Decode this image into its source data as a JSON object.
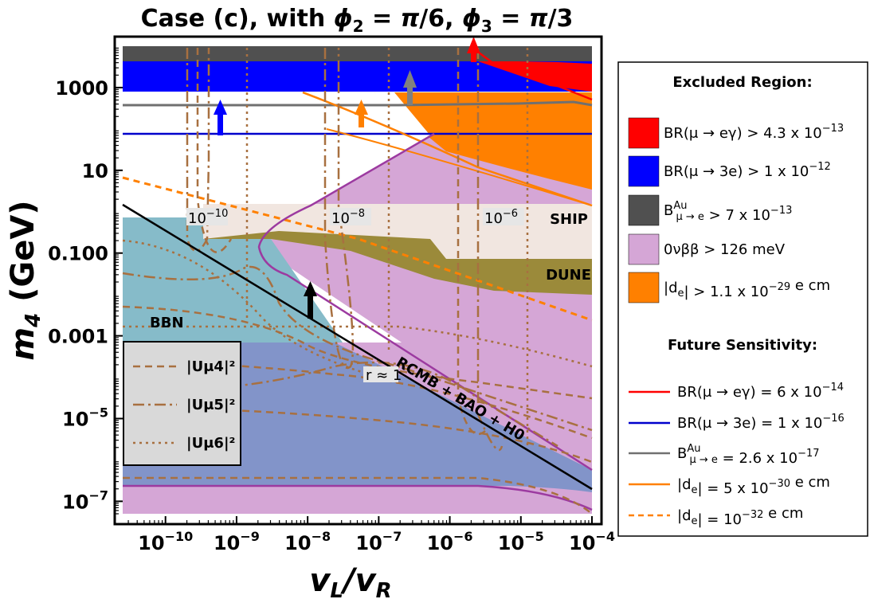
{
  "chart_data": {
    "type": "area",
    "title": "Case (c), with ϕ₂ = π/6, ϕ₃ = π/3",
    "xlabel": "vL/vR",
    "ylabel": "m4 (GeV)",
    "x_scale": "log",
    "y_scale": "log",
    "xlim": [
      2.5e-11,
      0.0001
    ],
    "ylim": [
      5e-08,
      10000.0
    ],
    "x_ticks": [
      {
        "value": 1e-10,
        "base": "10",
        "exp": "−10"
      },
      {
        "value": 1e-09,
        "base": "10",
        "exp": "−9"
      },
      {
        "value": 1e-08,
        "base": "10",
        "exp": "−8"
      },
      {
        "value": 1e-07,
        "base": "10",
        "exp": "−7"
      },
      {
        "value": 1e-06,
        "base": "10",
        "exp": "−6"
      },
      {
        "value": 1e-05,
        "base": "10",
        "exp": "−5"
      },
      {
        "value": 0.0001,
        "base": "10",
        "exp": "−4"
      }
    ],
    "y_ticks": [
      {
        "value": 1000,
        "base": "1000",
        "exp": ""
      },
      {
        "value": 10,
        "base": "10",
        "exp": ""
      },
      {
        "value": 0.1,
        "base": "0.100",
        "exp": ""
      },
      {
        "value": 0.001,
        "base": "0.001",
        "exp": ""
      },
      {
        "value": 1e-05,
        "base": "10",
        "exp": "−5"
      },
      {
        "value": 1e-07,
        "base": "10",
        "exp": "−7"
      }
    ],
    "excluded_regions": [
      {
        "name": "BR(μ → eγ) > 4.3 x 10⁻¹³",
        "color": "#ff0000"
      },
      {
        "name": "BR(μ → 3e) > 1 x 10⁻¹²",
        "color": "#0000ff"
      },
      {
        "name": "B^Au μ→e > 7 x 10⁻¹³",
        "color": "#505050"
      },
      {
        "name": "0νββ > 126 meV",
        "color": "#d5a6d6"
      },
      {
        "name": "|de| > 1.1 x 10⁻²⁹ e cm",
        "color": "#ff8000"
      }
    ],
    "future_sensitivity": [
      {
        "name": "BR(μ → eγ) = 6 x 10⁻¹⁴",
        "color": "#ff0000",
        "dash": "solid",
        "y_at_xmin": 4000,
        "y_at_xmax": 550
      },
      {
        "name": "BR(μ → 3e) = 1 x 10⁻¹⁶",
        "color": "#0000cc",
        "dash": "solid",
        "y_const": 90
      },
      {
        "name": "B^Au μ→e = 2.6 x 10⁻¹⁷",
        "color": "#707070",
        "dash": "solid",
        "y_const": 420
      },
      {
        "name": "|de| = 5 x 10⁻³⁰ e cm",
        "color": "#ff8000",
        "dash": "solid"
      },
      {
        "name": "|de| = 10⁻³² e cm",
        "color": "#ff8000",
        "dash": "dashed",
        "y_at_xmin": 8,
        "y_at_xmax": 0.004
      }
    ],
    "mixing_legend": [
      {
        "name": "|Uμ4|²",
        "color": "#a87040",
        "dash": "dashed"
      },
      {
        "name": "|Uμ5|²",
        "color": "#a87040",
        "dash": "dashdot"
      },
      {
        "name": "|Uμ6|²",
        "color": "#a87040",
        "dash": "dotted"
      }
    ],
    "annotations": {
      "ship": "SHIP",
      "dune": "DUNE",
      "bbn": "BBN",
      "r_label": "r ≈ 1",
      "cmb_line": "RCMB + BAO + H0",
      "contour_labels": [
        {
          "base": "10",
          "exp": "−10",
          "x": 1e-10
        },
        {
          "base": "10",
          "exp": "−8",
          "x": 1e-08
        },
        {
          "base": "10",
          "exp": "−6",
          "x": 1e-06
        }
      ]
    },
    "legend_placement": "right",
    "grid": false
  },
  "legend": {
    "excluded_header": "Excluded Region:",
    "future_header": "Future Sensitivity:",
    "excluded_items": [
      {
        "pre": "BR(μ → eγ) > 4.3 x 10",
        "sup": "−13",
        "post": ""
      },
      {
        "pre": "BR(μ → 3e) > 1 x 10",
        "sup": "−12",
        "post": ""
      },
      {
        "pre": "B",
        "sup": "Au",
        "sub": "μ → e",
        "post": " > 7 x 10",
        "sup2": "−13"
      },
      {
        "pre": "0νββ > 126 meV",
        "sup": "",
        "post": ""
      },
      {
        "pre": "|d",
        "sub": "e",
        "post": "| > 1.1 x 10",
        "sup2": "−29",
        "post2": " e cm"
      }
    ],
    "future_items": [
      {
        "pre": "BR(μ → eγ) = 6 x 10",
        "sup": "−14",
        "post": ""
      },
      {
        "pre": "BR(μ → 3e) = 1 x 10",
        "sup": "−16",
        "post": ""
      },
      {
        "pre": "B",
        "sup": "Au",
        "sub": "μ → e",
        "post": " = 2.6 x 10",
        "sup2": "−17"
      },
      {
        "pre": "|d",
        "sub": "e",
        "post": "| = 5 x 10",
        "sup2": "−30",
        "post2": " e cm"
      },
      {
        "pre": "|d",
        "sub": "e",
        "post": "| = 10",
        "sup2": "−32",
        "post2": " e cm"
      }
    ]
  }
}
